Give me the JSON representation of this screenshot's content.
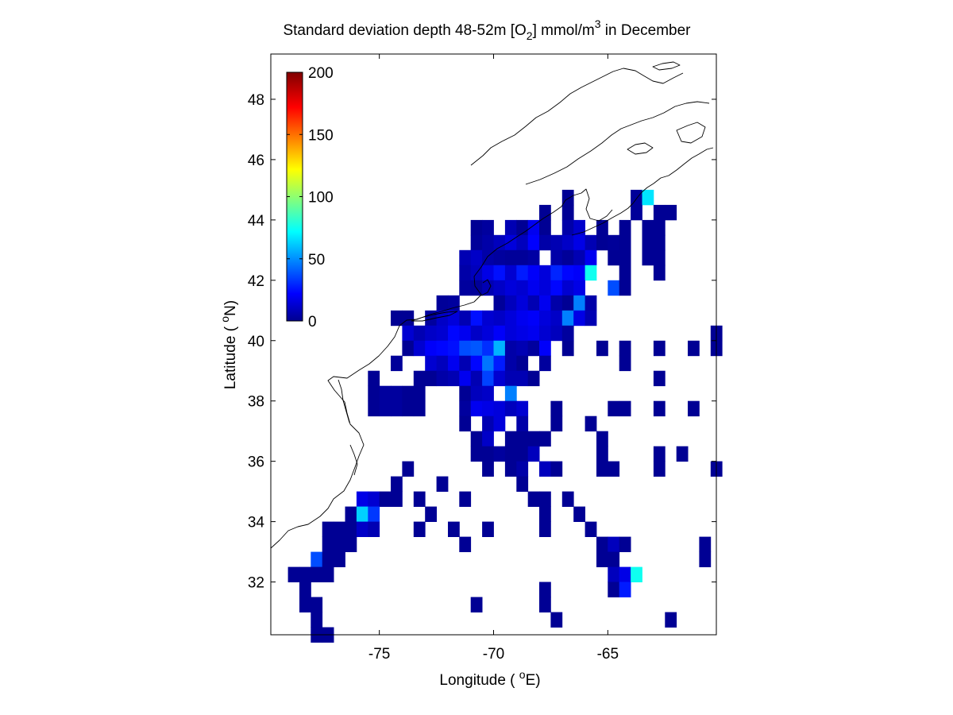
{
  "chart_data": {
    "type": "heatmap",
    "title": {
      "prefix": "Standard deviation depth 48-52m [O",
      "sub": "2",
      "mid": "] mmol/m",
      "sup": "3",
      "suffix": " in December"
    },
    "xlabel": {
      "prefix": "Longitude ( ",
      "sup": "o",
      "suffix": "E)"
    },
    "ylabel": {
      "prefix": "Latitude ( ",
      "sup": "o",
      "suffix": "N)"
    },
    "xlim": [
      -79.75,
      -60.25
    ],
    "ylim": [
      30.25,
      49.5
    ],
    "xticks": [
      -75,
      -70,
      -65
    ],
    "xtick_labels": [
      "-75",
      "-70",
      "-65"
    ],
    "yticks": [
      32,
      34,
      36,
      38,
      40,
      42,
      44,
      46,
      48
    ],
    "ytick_labels": [
      "32",
      "34",
      "36",
      "38",
      "40",
      "42",
      "44",
      "46",
      "48"
    ],
    "cell_size_deg": 0.5,
    "colormap": "jet",
    "colorbar": {
      "range": [
        0,
        200
      ],
      "ticks": [
        0,
        50,
        100,
        150,
        200
      ],
      "tick_labels": [
        "0",
        "50",
        "100",
        "150",
        "200"
      ],
      "placement": "inside top-left"
    },
    "grid": false,
    "coastline_color": "#000000",
    "cells": [
      [
        -66.75,
        44.75,
        4
      ],
      [
        -63.75,
        44.75,
        5
      ],
      [
        -63.25,
        44.75,
        70
      ],
      [
        -67.75,
        44.25,
        4
      ],
      [
        -66.75,
        44.25,
        4
      ],
      [
        -63.75,
        44.25,
        5
      ],
      [
        -62.75,
        44.25,
        4
      ],
      [
        -62.25,
        44.25,
        4
      ],
      [
        -70.75,
        43.75,
        4
      ],
      [
        -70.25,
        43.75,
        6
      ],
      [
        -69.25,
        43.75,
        10
      ],
      [
        -68.75,
        43.75,
        4
      ],
      [
        -68.25,
        43.75,
        22
      ],
      [
        -67.75,
        43.75,
        4
      ],
      [
        -66.75,
        43.75,
        8
      ],
      [
        -66.25,
        43.75,
        15
      ],
      [
        -65.25,
        43.75,
        4
      ],
      [
        -64.25,
        43.75,
        4
      ],
      [
        -63.25,
        43.75,
        4
      ],
      [
        -62.75,
        43.75,
        4
      ],
      [
        -70.75,
        43.25,
        5
      ],
      [
        -70.25,
        43.25,
        8
      ],
      [
        -69.75,
        43.25,
        12
      ],
      [
        -69.25,
        43.25,
        18
      ],
      [
        -68.75,
        43.25,
        12
      ],
      [
        -68.25,
        43.25,
        25
      ],
      [
        -67.75,
        43.25,
        8
      ],
      [
        -67.25,
        43.25,
        10
      ],
      [
        -66.75,
        43.25,
        14
      ],
      [
        -66.25,
        43.25,
        20
      ],
      [
        -65.75,
        43.25,
        10
      ],
      [
        -65.25,
        43.25,
        4
      ],
      [
        -64.75,
        43.25,
        5
      ],
      [
        -64.25,
        43.25,
        4
      ],
      [
        -63.25,
        43.25,
        4
      ],
      [
        -62.75,
        43.25,
        4
      ],
      [
        -71.25,
        42.75,
        10
      ],
      [
        -70.75,
        42.75,
        14
      ],
      [
        -70.25,
        42.75,
        8
      ],
      [
        -69.75,
        42.75,
        6
      ],
      [
        -69.25,
        42.75,
        5
      ],
      [
        -68.75,
        42.75,
        5
      ],
      [
        -68.25,
        42.75,
        7
      ],
      [
        -67.25,
        42.75,
        8
      ],
      [
        -66.75,
        42.75,
        5
      ],
      [
        -66.25,
        42.75,
        10
      ],
      [
        -65.75,
        42.75,
        22
      ],
      [
        -64.75,
        42.75,
        4
      ],
      [
        -64.25,
        42.75,
        4
      ],
      [
        -63.25,
        42.75,
        4
      ],
      [
        -62.75,
        42.75,
        4
      ],
      [
        -71.25,
        42.25,
        8
      ],
      [
        -70.75,
        42.25,
        12
      ],
      [
        -70.25,
        42.25,
        20
      ],
      [
        -69.75,
        42.25,
        28
      ],
      [
        -69.25,
        42.25,
        16
      ],
      [
        -68.75,
        42.25,
        30
      ],
      [
        -68.25,
        42.25,
        24
      ],
      [
        -67.75,
        42.25,
        18
      ],
      [
        -67.25,
        42.25,
        32
      ],
      [
        -66.75,
        42.25,
        26
      ],
      [
        -66.25,
        42.25,
        24
      ],
      [
        -65.75,
        42.25,
        78
      ],
      [
        -64.25,
        42.25,
        4
      ],
      [
        -62.75,
        42.25,
        4
      ],
      [
        -71.25,
        41.75,
        6
      ],
      [
        -70.75,
        41.75,
        5
      ],
      [
        -70.25,
        41.75,
        10
      ],
      [
        -69.75,
        41.75,
        14
      ],
      [
        -69.25,
        41.75,
        18
      ],
      [
        -68.75,
        41.75,
        16
      ],
      [
        -68.25,
        41.75,
        22
      ],
      [
        -67.75,
        41.75,
        18
      ],
      [
        -67.25,
        41.75,
        26
      ],
      [
        -66.75,
        41.75,
        16
      ],
      [
        -66.25,
        41.75,
        20
      ],
      [
        -64.75,
        41.75,
        40
      ],
      [
        -64.25,
        41.75,
        4
      ],
      [
        -72.25,
        41.25,
        5
      ],
      [
        -71.75,
        41.25,
        6
      ],
      [
        -69.75,
        41.25,
        5
      ],
      [
        -69.25,
        41.25,
        12
      ],
      [
        -68.75,
        41.25,
        18
      ],
      [
        -68.25,
        41.25,
        10
      ],
      [
        -67.75,
        41.25,
        22
      ],
      [
        -67.25,
        41.25,
        8
      ],
      [
        -66.75,
        41.25,
        4
      ],
      [
        -66.25,
        41.25,
        50
      ],
      [
        -65.75,
        41.25,
        8
      ],
      [
        -74.25,
        40.75,
        4
      ],
      [
        -73.75,
        40.75,
        4
      ],
      [
        -72.75,
        40.75,
        6
      ],
      [
        -72.25,
        40.75,
        14
      ],
      [
        -71.75,
        40.75,
        18
      ],
      [
        -71.25,
        40.75,
        10
      ],
      [
        -70.75,
        40.75,
        28
      ],
      [
        -70.25,
        40.75,
        16
      ],
      [
        -69.75,
        40.75,
        14
      ],
      [
        -69.25,
        40.75,
        18
      ],
      [
        -68.75,
        40.75,
        22
      ],
      [
        -68.25,
        40.75,
        24
      ],
      [
        -67.75,
        40.75,
        18
      ],
      [
        -67.25,
        40.75,
        14
      ],
      [
        -66.75,
        40.75,
        50
      ],
      [
        -66.25,
        40.75,
        20
      ],
      [
        -65.75,
        40.75,
        10
      ],
      [
        -73.75,
        40.25,
        16
      ],
      [
        -73.25,
        40.25,
        10
      ],
      [
        -72.75,
        40.25,
        14
      ],
      [
        -72.25,
        40.25,
        16
      ],
      [
        -71.75,
        40.25,
        26
      ],
      [
        -71.25,
        40.25,
        22
      ],
      [
        -70.75,
        40.25,
        14
      ],
      [
        -70.25,
        40.25,
        18
      ],
      [
        -69.75,
        40.25,
        24
      ],
      [
        -69.25,
        40.25,
        18
      ],
      [
        -68.75,
        40.25,
        20
      ],
      [
        -68.25,
        40.25,
        22
      ],
      [
        -67.75,
        40.25,
        16
      ],
      [
        -67.25,
        40.25,
        12
      ],
      [
        -66.75,
        40.25,
        6
      ],
      [
        -60.25,
        40.25,
        4
      ],
      [
        -73.75,
        39.75,
        4
      ],
      [
        -73.25,
        39.75,
        16
      ],
      [
        -72.75,
        39.75,
        24
      ],
      [
        -72.25,
        39.75,
        26
      ],
      [
        -71.75,
        39.75,
        28
      ],
      [
        -71.25,
        39.75,
        40
      ],
      [
        -70.75,
        39.75,
        42
      ],
      [
        -70.25,
        39.75,
        34
      ],
      [
        -69.75,
        39.75,
        60
      ],
      [
        -69.25,
        39.75,
        8
      ],
      [
        -68.75,
        39.75,
        10
      ],
      [
        -68.25,
        39.75,
        6
      ],
      [
        -67.75,
        39.75,
        24
      ],
      [
        -66.75,
        39.75,
        4
      ],
      [
        -65.25,
        39.75,
        4
      ],
      [
        -64.25,
        39.75,
        4
      ],
      [
        -62.75,
        39.75,
        4
      ],
      [
        -61.25,
        39.75,
        4
      ],
      [
        -60.25,
        39.75,
        4
      ],
      [
        -74.25,
        39.25,
        5
      ],
      [
        -72.75,
        39.25,
        16
      ],
      [
        -72.25,
        39.25,
        12
      ],
      [
        -71.75,
        39.25,
        22
      ],
      [
        -71.25,
        39.25,
        10
      ],
      [
        -70.75,
        39.25,
        26
      ],
      [
        -70.25,
        39.25,
        48
      ],
      [
        -69.75,
        39.25,
        30
      ],
      [
        -69.25,
        39.25,
        8
      ],
      [
        -68.75,
        39.25,
        4
      ],
      [
        -67.75,
        39.25,
        6
      ],
      [
        -64.25,
        39.25,
        4
      ],
      [
        -75.25,
        38.75,
        4
      ],
      [
        -73.25,
        38.75,
        4
      ],
      [
        -72.75,
        38.75,
        4
      ],
      [
        -72.25,
        38.75,
        8
      ],
      [
        -71.75,
        38.75,
        10
      ],
      [
        -71.25,
        38.75,
        22
      ],
      [
        -70.75,
        38.75,
        10
      ],
      [
        -70.25,
        38.75,
        38
      ],
      [
        -69.75,
        38.75,
        16
      ],
      [
        -69.25,
        38.75,
        10
      ],
      [
        -68.75,
        38.75,
        10
      ],
      [
        -68.25,
        38.75,
        4
      ],
      [
        -62.75,
        38.75,
        4
      ],
      [
        -75.25,
        38.25,
        4
      ],
      [
        -74.75,
        38.25,
        6
      ],
      [
        -74.25,
        38.25,
        6
      ],
      [
        -73.75,
        38.25,
        4
      ],
      [
        -73.25,
        38.25,
        4
      ],
      [
        -71.25,
        38.25,
        4
      ],
      [
        -70.75,
        38.25,
        12
      ],
      [
        -70.25,
        38.25,
        14
      ],
      [
        -69.25,
        38.25,
        50
      ],
      [
        -75.25,
        37.75,
        4
      ],
      [
        -74.75,
        37.75,
        6
      ],
      [
        -74.25,
        37.75,
        6
      ],
      [
        -73.75,
        37.75,
        4
      ],
      [
        -73.25,
        37.75,
        4
      ],
      [
        -71.25,
        37.75,
        6
      ],
      [
        -70.75,
        37.75,
        22
      ],
      [
        -70.25,
        37.75,
        20
      ],
      [
        -69.75,
        37.75,
        18
      ],
      [
        -69.25,
        37.75,
        12
      ],
      [
        -68.75,
        37.75,
        16
      ],
      [
        -67.25,
        37.75,
        4
      ],
      [
        -64.75,
        37.75,
        4
      ],
      [
        -64.25,
        37.75,
        4
      ],
      [
        -62.75,
        37.75,
        4
      ],
      [
        -61.25,
        37.75,
        4
      ],
      [
        -71.25,
        37.25,
        4
      ],
      [
        -70.25,
        37.25,
        10
      ],
      [
        -69.75,
        37.25,
        18
      ],
      [
        -68.75,
        37.25,
        8
      ],
      [
        -67.25,
        37.25,
        4
      ],
      [
        -65.75,
        37.25,
        4
      ],
      [
        -70.75,
        36.75,
        4
      ],
      [
        -70.25,
        36.75,
        14
      ],
      [
        -69.25,
        36.75,
        4
      ],
      [
        -68.75,
        36.75,
        4
      ],
      [
        -68.25,
        36.75,
        4
      ],
      [
        -67.75,
        36.75,
        4
      ],
      [
        -65.25,
        36.75,
        4
      ],
      [
        -70.75,
        36.25,
        4
      ],
      [
        -70.25,
        36.25,
        4
      ],
      [
        -69.75,
        36.25,
        6
      ],
      [
        -69.25,
        36.25,
        4
      ],
      [
        -68.75,
        36.25,
        4
      ],
      [
        -68.25,
        36.25,
        12
      ],
      [
        -65.25,
        36.25,
        4
      ],
      [
        -62.75,
        36.25,
        4
      ],
      [
        -61.75,
        36.25,
        4
      ],
      [
        -73.75,
        35.75,
        4
      ],
      [
        -70.25,
        35.75,
        4
      ],
      [
        -69.25,
        35.75,
        4
      ],
      [
        -68.75,
        35.75,
        8
      ],
      [
        -67.75,
        35.75,
        12
      ],
      [
        -67.25,
        35.75,
        4
      ],
      [
        -65.25,
        35.75,
        4
      ],
      [
        -64.75,
        35.75,
        4
      ],
      [
        -62.75,
        35.75,
        4
      ],
      [
        -60.25,
        35.75,
        4
      ],
      [
        -74.25,
        35.25,
        4
      ],
      [
        -72.25,
        35.25,
        4
      ],
      [
        -68.75,
        35.25,
        4
      ],
      [
        -75.75,
        34.75,
        20
      ],
      [
        -75.25,
        34.75,
        16
      ],
      [
        -74.75,
        34.75,
        4
      ],
      [
        -74.25,
        34.75,
        4
      ],
      [
        -73.25,
        34.75,
        4
      ],
      [
        -71.25,
        34.75,
        4
      ],
      [
        -68.25,
        34.75,
        4
      ],
      [
        -67.75,
        34.75,
        4
      ],
      [
        -66.75,
        34.75,
        4
      ],
      [
        -76.25,
        34.25,
        4
      ],
      [
        -75.75,
        34.25,
        66
      ],
      [
        -75.25,
        34.25,
        36
      ],
      [
        -72.75,
        34.25,
        4
      ],
      [
        -67.75,
        34.25,
        4
      ],
      [
        -66.25,
        34.25,
        4
      ],
      [
        -77.25,
        33.75,
        4
      ],
      [
        -76.75,
        33.75,
        4
      ],
      [
        -76.25,
        33.75,
        4
      ],
      [
        -75.75,
        33.75,
        14
      ],
      [
        -75.25,
        33.75,
        10
      ],
      [
        -73.25,
        33.75,
        4
      ],
      [
        -71.75,
        33.75,
        4
      ],
      [
        -70.25,
        33.75,
        4
      ],
      [
        -67.75,
        33.75,
        4
      ],
      [
        -65.75,
        33.75,
        4
      ],
      [
        -77.25,
        33.25,
        4
      ],
      [
        -76.75,
        33.25,
        4
      ],
      [
        -76.25,
        33.25,
        4
      ],
      [
        -71.25,
        33.25,
        4
      ],
      [
        -65.25,
        33.25,
        4
      ],
      [
        -64.75,
        33.25,
        12
      ],
      [
        -64.25,
        33.25,
        4
      ],
      [
        -60.75,
        33.25,
        4
      ],
      [
        -77.75,
        32.75,
        40
      ],
      [
        -77.25,
        32.75,
        4
      ],
      [
        -76.75,
        32.75,
        4
      ],
      [
        -65.25,
        32.75,
        4
      ],
      [
        -64.75,
        32.75,
        4
      ],
      [
        -60.75,
        32.75,
        4
      ],
      [
        -78.75,
        32.25,
        4
      ],
      [
        -78.25,
        32.25,
        4
      ],
      [
        -77.75,
        32.25,
        4
      ],
      [
        -77.25,
        32.25,
        4
      ],
      [
        -64.75,
        32.25,
        12
      ],
      [
        -64.25,
        32.25,
        20
      ],
      [
        -63.75,
        32.25,
        78
      ],
      [
        -78.25,
        31.75,
        4
      ],
      [
        -64.75,
        31.75,
        4
      ],
      [
        -64.25,
        31.75,
        30
      ],
      [
        -67.75,
        31.75,
        4
      ],
      [
        -78.25,
        31.25,
        4
      ],
      [
        -77.75,
        31.25,
        4
      ],
      [
        -70.75,
        31.25,
        4
      ],
      [
        -67.75,
        31.25,
        4
      ],
      [
        -77.75,
        30.75,
        4
      ],
      [
        -67.25,
        30.75,
        4
      ],
      [
        -62.25,
        30.75,
        4
      ],
      [
        -77.75,
        30.25,
        4
      ],
      [
        -77.25,
        30.25,
        4
      ]
    ]
  }
}
